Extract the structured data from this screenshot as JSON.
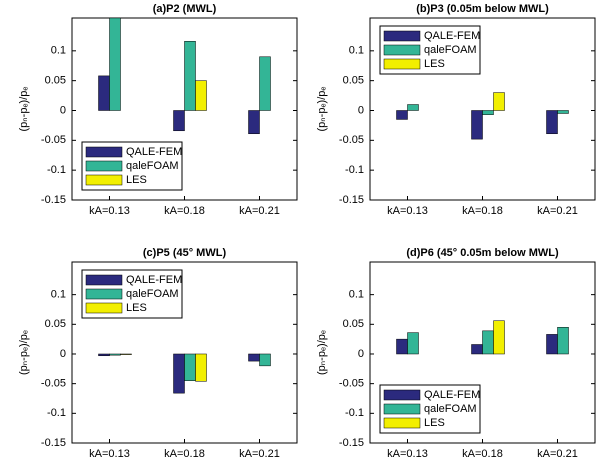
{
  "chart_data": [
    {
      "type": "bar",
      "title": "(a)P2 (MWL)",
      "ylabel": "(pₙ-pₑ)/pₑ",
      "categories": [
        "kA=0.13",
        "kA=0.18",
        "kA=0.21"
      ],
      "series": [
        {
          "name": "QALE-FEM",
          "color": "#2b2a7e",
          "values": [
            0.058,
            -0.034,
            -0.039
          ]
        },
        {
          "name": "qaleFOAM",
          "color": "#33b596",
          "values": [
            0.155,
            0.116,
            0.09
          ]
        },
        {
          "name": "LES",
          "color": "#f2ef00",
          "values": [
            null,
            0.05,
            null
          ]
        }
      ],
      "ylim": [
        -0.15,
        0.155
      ],
      "yticks": [
        -0.15,
        -0.1,
        -0.05,
        0,
        0.05,
        0.1
      ],
      "legend": "lower left"
    },
    {
      "type": "bar",
      "title": "(b)P3 (0.05m below MWL)",
      "ylabel": "(pₙ-pₑ)/pₑ",
      "categories": [
        "kA=0.13",
        "kA=0.18",
        "kA=0.21"
      ],
      "series": [
        {
          "name": "QALE-FEM",
          "color": "#2b2a7e",
          "values": [
            -0.015,
            -0.048,
            -0.039
          ]
        },
        {
          "name": "qaleFOAM",
          "color": "#33b596",
          "values": [
            0.01,
            -0.007,
            -0.005
          ]
        },
        {
          "name": "LES",
          "color": "#f2ef00",
          "values": [
            null,
            0.03,
            null
          ]
        }
      ],
      "ylim": [
        -0.15,
        0.155
      ],
      "yticks": [
        -0.15,
        -0.1,
        -0.05,
        0,
        0.05,
        0.1
      ],
      "legend": "upper left"
    },
    {
      "type": "bar",
      "title": "(c)P5 (45° MWL)",
      "ylabel": "(pₙ-pₑ)/pₑ",
      "categories": [
        "kA=0.13",
        "kA=0.18",
        "kA=0.21"
      ],
      "series": [
        {
          "name": "QALE-FEM",
          "color": "#2b2a7e",
          "values": [
            -0.003,
            -0.066,
            -0.012
          ]
        },
        {
          "name": "qaleFOAM",
          "color": "#33b596",
          "values": [
            -0.002,
            -0.045,
            -0.02
          ]
        },
        {
          "name": "LES",
          "color": "#f2ef00",
          "values": [
            -0.001,
            -0.046,
            null
          ]
        }
      ],
      "ylim": [
        -0.15,
        0.155
      ],
      "yticks": [
        -0.15,
        -0.1,
        -0.05,
        0,
        0.05,
        0.1
      ],
      "legend": "upper left"
    },
    {
      "type": "bar",
      "title": "(d)P6 (45° 0.05m below MWL)",
      "ylabel": "(pₙ-pₑ)/pₑ",
      "categories": [
        "kA=0.13",
        "kA=0.18",
        "kA=0.21"
      ],
      "series": [
        {
          "name": "QALE-FEM",
          "color": "#2b2a7e",
          "values": [
            0.025,
            0.016,
            0.033
          ]
        },
        {
          "name": "qaleFOAM",
          "color": "#33b596",
          "values": [
            0.036,
            0.039,
            0.045
          ]
        },
        {
          "name": "LES",
          "color": "#f2ef00",
          "values": [
            null,
            0.056,
            null
          ]
        }
      ],
      "ylim": [
        -0.15,
        0.155
      ],
      "yticks": [
        -0.15,
        -0.1,
        -0.05,
        0,
        0.05,
        0.1
      ],
      "legend": "lower left"
    }
  ]
}
